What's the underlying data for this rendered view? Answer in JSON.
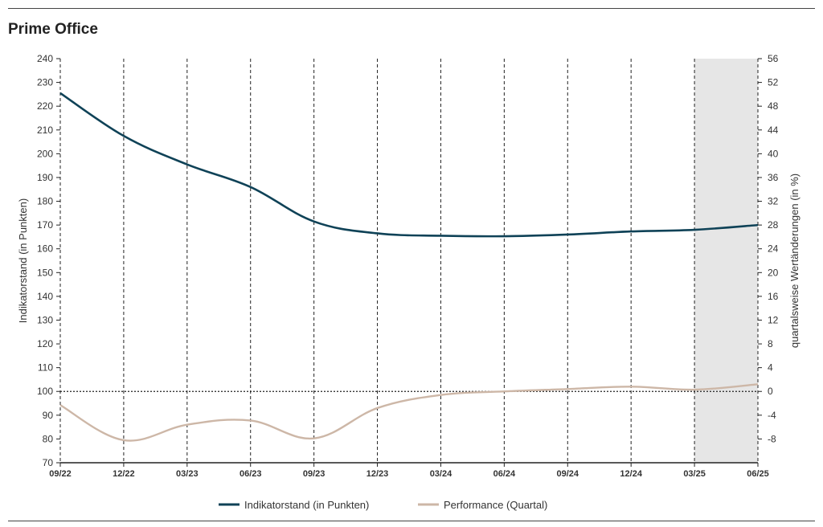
{
  "title": "Prime Office",
  "chart_data": {
    "type": "line",
    "title": "Prime Office",
    "categories": [
      "09/22",
      "12/22",
      "03/23",
      "06/23",
      "09/23",
      "12/23",
      "03/24",
      "06/24",
      "09/24",
      "12/24",
      "03/25",
      "06/25"
    ],
    "series": [
      {
        "name": "Indikatorstand (in Punkten)",
        "axis": "left",
        "color": "#0f4257",
        "values": [
          225.5,
          207.5,
          195.5,
          186,
          171.5,
          166.5,
          165.5,
          165.3,
          166,
          167.3,
          168,
          170
        ]
      },
      {
        "name": "Performance (Quartal)",
        "axis": "right",
        "color": "#cdb7a7",
        "values": [
          -2.3,
          -8.2,
          -5.6,
          -4.9,
          -7.9,
          -2.8,
          -0.6,
          0,
          0.4,
          0.8,
          0.3,
          1.2
        ]
      }
    ],
    "ylabel": "Indikatorstand (in Punkten)",
    "ylim": [
      70,
      240
    ],
    "yticks": [
      70,
      80,
      90,
      100,
      110,
      120,
      130,
      140,
      150,
      160,
      170,
      180,
      190,
      200,
      210,
      220,
      230,
      240
    ],
    "y2label": "quartalsweise Wertänderungen (in %)",
    "y2lim": [
      -12,
      56
    ],
    "y2ticks": [
      -8,
      -4,
      0,
      4,
      8,
      12,
      16,
      20,
      24,
      28,
      32,
      36,
      40,
      44,
      48,
      52,
      56
    ],
    "reference_line": 100,
    "shaded_range": [
      "03/25",
      "06/25"
    ],
    "grid": "vertical dashed",
    "legend_position": "bottom"
  }
}
